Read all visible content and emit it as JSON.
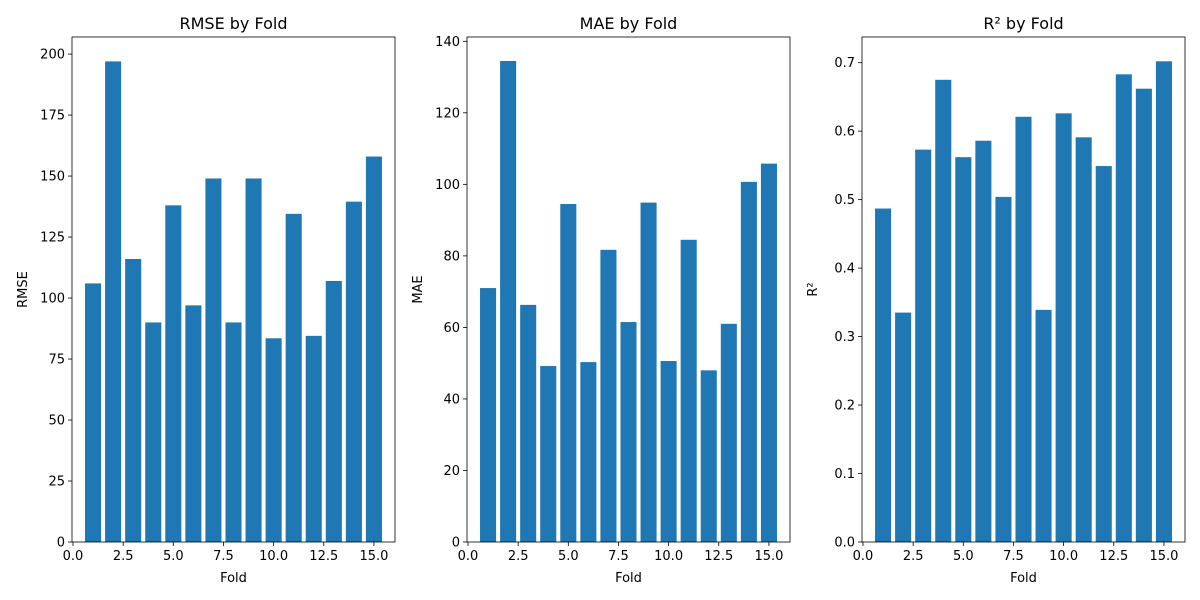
{
  "chart_data": [
    {
      "type": "bar",
      "title": "RMSE by Fold",
      "xlabel": "Fold",
      "ylabel": "RMSE",
      "x": [
        1,
        2,
        3,
        4,
        5,
        6,
        7,
        8,
        9,
        10,
        11,
        12,
        13,
        14,
        15
      ],
      "values": [
        106,
        197,
        116,
        90,
        138,
        97,
        149,
        90,
        149,
        83.5,
        134.5,
        84.5,
        107,
        139.5,
        158
      ],
      "xlim": [
        -0.05,
        16.05
      ],
      "ylim": [
        0,
        207
      ],
      "xticks": [
        0.0,
        2.5,
        5.0,
        7.5,
        10.0,
        12.5,
        15.0
      ],
      "xtick_labels": [
        "0.0",
        "2.5",
        "5.0",
        "7.5",
        "10.0",
        "12.5",
        "15.0"
      ],
      "yticks": [
        0,
        25,
        50,
        75,
        100,
        125,
        150,
        175,
        200
      ],
      "ytick_labels": [
        "0",
        "25",
        "50",
        "75",
        "100",
        "125",
        "150",
        "175",
        "200"
      ],
      "grid": false,
      "color": "#1f77b4"
    },
    {
      "type": "bar",
      "title": "MAE by Fold",
      "xlabel": "Fold",
      "ylabel": "MAE",
      "x": [
        1,
        2,
        3,
        4,
        5,
        6,
        7,
        8,
        9,
        10,
        11,
        12,
        13,
        14,
        15
      ],
      "values": [
        71,
        134.5,
        66.3,
        49.2,
        94.5,
        50.3,
        81.7,
        61.5,
        94.9,
        50.6,
        84.5,
        48,
        61,
        100.7,
        105.8
      ],
      "xlim": [
        -0.05,
        16.05
      ],
      "ylim": [
        0,
        141.2
      ],
      "xticks": [
        0.0,
        2.5,
        5.0,
        7.5,
        10.0,
        12.5,
        15.0
      ],
      "xtick_labels": [
        "0.0",
        "2.5",
        "5.0",
        "7.5",
        "10.0",
        "12.5",
        "15.0"
      ],
      "yticks": [
        0,
        20,
        40,
        60,
        80,
        100,
        120,
        140
      ],
      "ytick_labels": [
        "0",
        "20",
        "40",
        "60",
        "80",
        "100",
        "120",
        "140"
      ],
      "grid": false,
      "color": "#1f77b4"
    },
    {
      "type": "bar",
      "title": "R² by Fold",
      "xlabel": "Fold",
      "ylabel": "R²",
      "x": [
        1,
        2,
        3,
        4,
        5,
        6,
        7,
        8,
        9,
        10,
        11,
        12,
        13,
        14,
        15
      ],
      "values": [
        0.487,
        0.335,
        0.573,
        0.675,
        0.562,
        0.586,
        0.504,
        0.621,
        0.339,
        0.626,
        0.591,
        0.549,
        0.683,
        0.662,
        0.702
      ],
      "xlim": [
        -0.05,
        16.05
      ],
      "ylim": [
        0,
        0.7375
      ],
      "xticks": [
        0.0,
        2.5,
        5.0,
        7.5,
        10.0,
        12.5,
        15.0
      ],
      "xtick_labels": [
        "0.0",
        "2.5",
        "5.0",
        "7.5",
        "10.0",
        "12.5",
        "15.0"
      ],
      "yticks": [
        0.0,
        0.1,
        0.2,
        0.3,
        0.4,
        0.5,
        0.6,
        0.7
      ],
      "ytick_labels": [
        "0.0",
        "0.1",
        "0.2",
        "0.3",
        "0.4",
        "0.5",
        "0.6",
        "0.7"
      ],
      "grid": false,
      "color": "#1f77b4"
    }
  ]
}
